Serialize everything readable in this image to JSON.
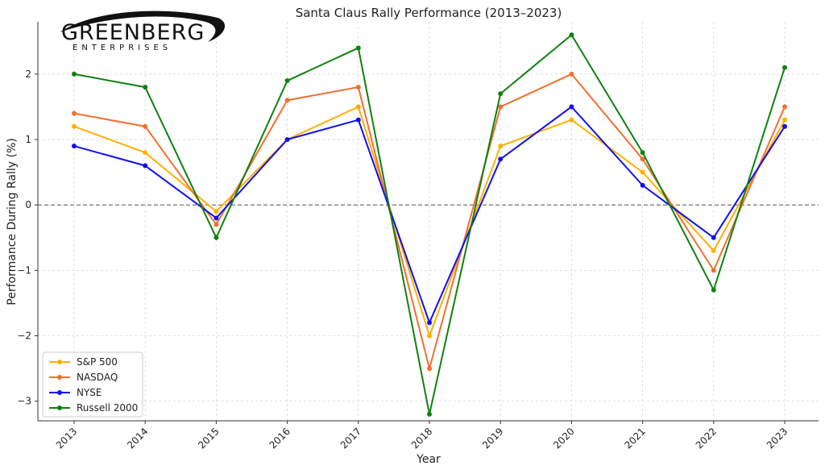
{
  "logo": {
    "name": "GREENBERG",
    "tagline": "ENTERPRISES"
  },
  "chart_data": {
    "type": "line",
    "title": "Santa Claus Rally Performance (2013–2023)",
    "xlabel": "Year",
    "ylabel": "Performance During Rally (%)",
    "categories": [
      "2013",
      "2014",
      "2015",
      "2016",
      "2017",
      "2018",
      "2019",
      "2020",
      "2021",
      "2022",
      "2023"
    ],
    "ylim": [
      -3.3,
      2.8
    ],
    "yticks": [
      -3,
      -2,
      -1,
      0,
      1,
      2
    ],
    "ytick_labels": [
      "−3",
      "−2",
      "−1",
      "0",
      "1",
      "2"
    ],
    "grid": true,
    "zero_line": true,
    "legend_position": "lower-left",
    "series": [
      {
        "name": "S&P 500",
        "color": "#FFB000",
        "values": [
          1.2,
          0.8,
          -0.1,
          1.0,
          1.5,
          -2.0,
          0.9,
          1.3,
          0.5,
          -0.7,
          1.3
        ]
      },
      {
        "name": "NASDAQ",
        "color": "#F07030",
        "values": [
          1.4,
          1.2,
          -0.3,
          1.6,
          1.8,
          -2.5,
          1.5,
          2.0,
          0.7,
          -1.0,
          1.5
        ]
      },
      {
        "name": "NYSE",
        "color": "#1010F0",
        "values": [
          0.9,
          0.6,
          -0.2,
          1.0,
          1.3,
          -1.8,
          0.7,
          1.5,
          0.3,
          -0.5,
          1.2
        ]
      },
      {
        "name": "Russell 2000",
        "color": "#108010",
        "values": [
          2.0,
          1.8,
          -0.5,
          1.9,
          2.4,
          -3.2,
          1.7,
          2.6,
          0.8,
          -1.3,
          2.1
        ]
      }
    ]
  }
}
